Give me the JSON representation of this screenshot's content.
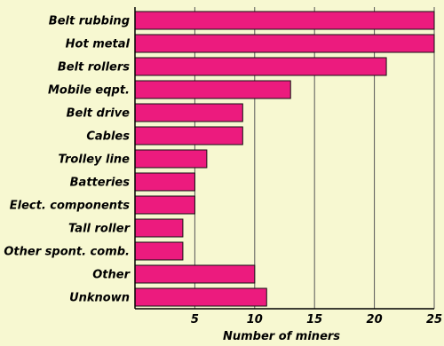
{
  "chart_data": {
    "type": "bar",
    "orientation": "horizontal",
    "categories": [
      "Belt rubbing",
      "Hot metal",
      "Belt rollers",
      "Mobile eqpt.",
      "Belt drive",
      "Cables",
      "Trolley line",
      "Batteries",
      "Elect. components",
      "Tall roller",
      "Other spont. comb.",
      "Other",
      "Unknown"
    ],
    "values": [
      25,
      25,
      21,
      13,
      9,
      9,
      6,
      5,
      5,
      4,
      4,
      10,
      11
    ],
    "xlabel": "Number of miners",
    "ylabel": "",
    "xlim": [
      0,
      25
    ],
    "xticks": [
      5,
      10,
      15,
      20,
      25
    ],
    "xtick_labels": [
      "5",
      "10",
      "15",
      "20",
      "25"
    ],
    "grid": "vertical",
    "legend": "none"
  },
  "colors": {
    "background": "#f7f8d1",
    "bar_fill": "#ec1b7e",
    "bar_stroke": "#111111",
    "grid": "#555555",
    "axis": "#000000"
  }
}
